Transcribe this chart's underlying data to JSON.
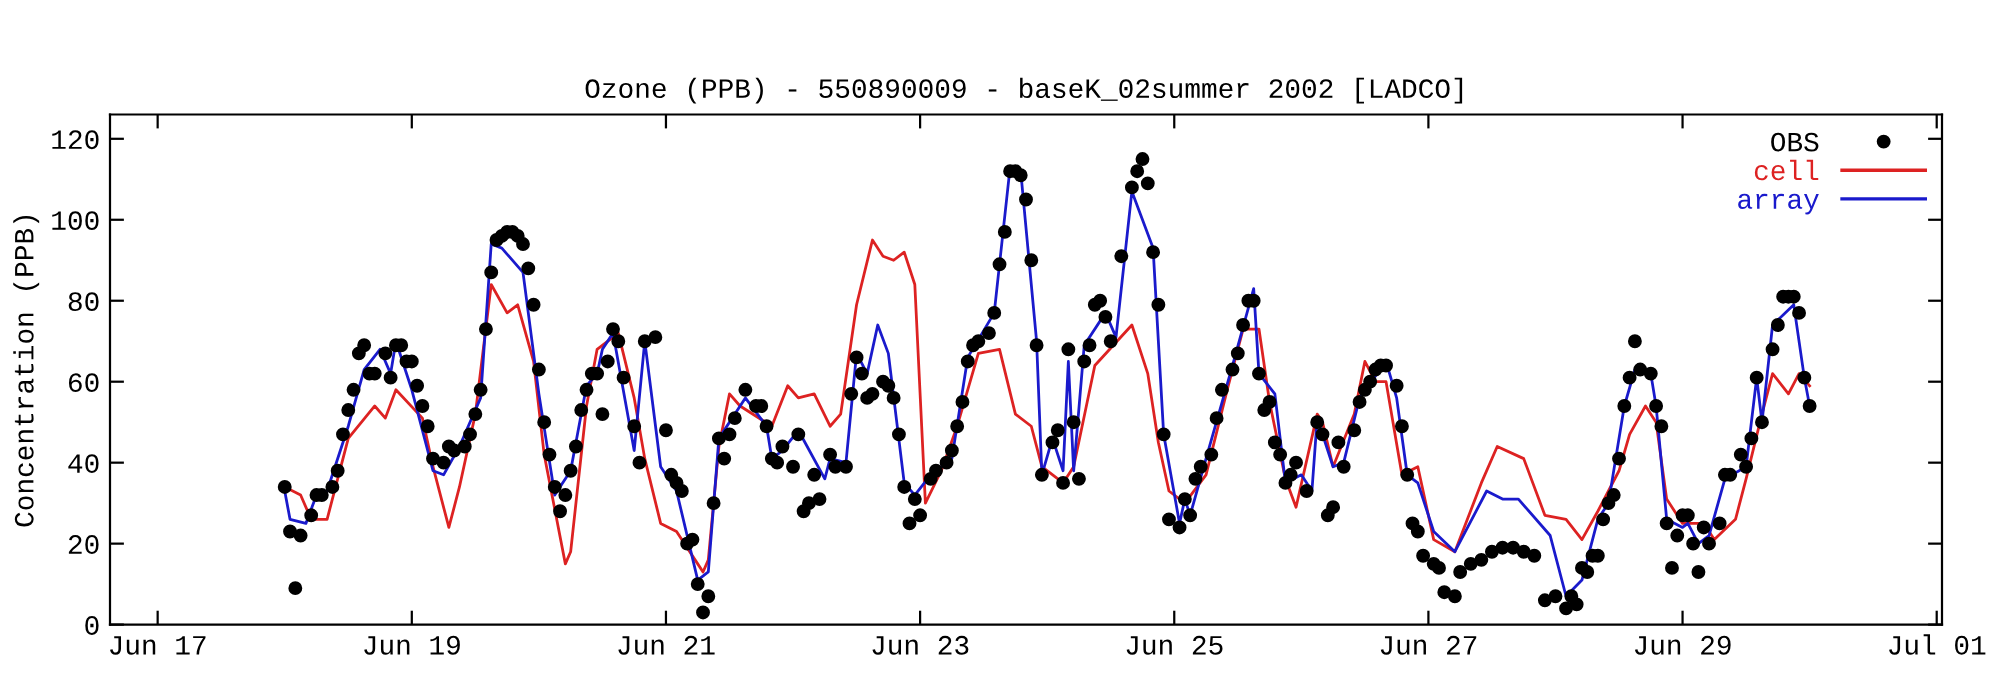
{
  "chart_data": {
    "type": "line",
    "title": "Ozone (PPB) - 550890009 - baseK_02summer 2002 [LADCO]",
    "ylabel": "Concentration (PPB)",
    "xlim": [
      "2002-06-16T15:00",
      "2002-07-01T01:00"
    ],
    "xticks": [
      {
        "value": "2002-06-17",
        "label": "Jun 17"
      },
      {
        "value": "2002-06-19",
        "label": "Jun 19"
      },
      {
        "value": "2002-06-21",
        "label": "Jun 21"
      },
      {
        "value": "2002-06-23",
        "label": "Jun 23"
      },
      {
        "value": "2002-06-25",
        "label": "Jun 25"
      },
      {
        "value": "2002-06-27",
        "label": "Jun 27"
      },
      {
        "value": "2002-06-29",
        "label": "Jun 29"
      },
      {
        "value": "2002-07-01",
        "label": "Jul 01"
      }
    ],
    "ylim": [
      0,
      126
    ],
    "yticks": [
      0,
      20,
      40,
      60,
      80,
      100,
      120
    ],
    "legend": "top right",
    "grid": false,
    "series": [
      {
        "name": "OBS",
        "type": "scatter",
        "marker": "circle",
        "color": "#000000",
        "x": [
          "2002-06-18T00:00",
          "2002-06-18T01:00",
          "2002-06-18T02:00",
          "2002-06-18T03:00",
          "2002-06-18T05:00",
          "2002-06-18T06:00",
          "2002-06-18T07:00",
          "2002-06-18T09:00",
          "2002-06-18T10:00",
          "2002-06-18T11:00",
          "2002-06-18T12:00",
          "2002-06-18T13:00",
          "2002-06-18T14:00",
          "2002-06-18T15:00",
          "2002-06-18T16:00",
          "2002-06-18T17:00",
          "2002-06-18T19:00",
          "2002-06-18T20:00",
          "2002-06-18T21:00",
          "2002-06-18T22:00",
          "2002-06-18T23:00",
          "2002-06-19T00:00",
          "2002-06-19T01:00",
          "2002-06-19T02:00",
          "2002-06-19T03:00",
          "2002-06-19T04:00",
          "2002-06-19T06:00",
          "2002-06-19T07:00",
          "2002-06-19T08:00",
          "2002-06-19T10:00",
          "2002-06-19T11:00",
          "2002-06-19T12:00",
          "2002-06-19T13:00",
          "2002-06-19T14:00",
          "2002-06-19T15:00",
          "2002-06-19T16:00",
          "2002-06-19T17:00",
          "2002-06-19T18:00",
          "2002-06-19T19:00",
          "2002-06-19T20:00",
          "2002-06-19T21:00",
          "2002-06-19T22:00",
          "2002-06-19T23:00",
          "2002-06-20T00:00",
          "2002-06-20T01:00",
          "2002-06-20T02:00",
          "2002-06-20T03:00",
          "2002-06-20T04:00",
          "2002-06-20T05:00",
          "2002-06-20T06:00",
          "2002-06-20T07:00",
          "2002-06-20T08:00",
          "2002-06-20T09:00",
          "2002-06-20T10:00",
          "2002-06-20T11:00",
          "2002-06-20T12:00",
          "2002-06-20T13:00",
          "2002-06-20T14:00",
          "2002-06-20T15:00",
          "2002-06-20T16:00",
          "2002-06-20T18:00",
          "2002-06-20T19:00",
          "2002-06-20T20:00",
          "2002-06-20T22:00",
          "2002-06-21T00:00",
          "2002-06-21T01:00",
          "2002-06-21T02:00",
          "2002-06-21T03:00",
          "2002-06-21T04:00",
          "2002-06-21T05:00",
          "2002-06-21T06:00",
          "2002-06-21T07:00",
          "2002-06-21T08:00",
          "2002-06-21T09:00",
          "2002-06-21T10:00",
          "2002-06-21T11:00",
          "2002-06-21T12:00",
          "2002-06-21T13:00",
          "2002-06-21T15:00",
          "2002-06-21T17:00",
          "2002-06-21T18:00",
          "2002-06-21T19:00",
          "2002-06-21T20:00",
          "2002-06-21T21:00",
          "2002-06-21T22:00",
          "2002-06-22T00:00",
          "2002-06-22T01:00",
          "2002-06-22T02:00",
          "2002-06-22T03:00",
          "2002-06-22T04:00",
          "2002-06-22T05:00",
          "2002-06-22T07:00",
          "2002-06-22T08:00",
          "2002-06-22T10:00",
          "2002-06-22T11:00",
          "2002-06-22T12:00",
          "2002-06-22T13:00",
          "2002-06-22T14:00",
          "2002-06-22T15:00",
          "2002-06-22T17:00",
          "2002-06-22T18:00",
          "2002-06-22T19:00",
          "2002-06-22T20:00",
          "2002-06-22T21:00",
          "2002-06-22T22:00",
          "2002-06-22T23:00",
          "2002-06-23T00:00",
          "2002-06-23T02:00",
          "2002-06-23T03:00",
          "2002-06-23T05:00",
          "2002-06-23T06:00",
          "2002-06-23T07:00",
          "2002-06-23T08:00",
          "2002-06-23T09:00",
          "2002-06-23T10:00",
          "2002-06-23T11:00",
          "2002-06-23T13:00",
          "2002-06-23T14:00",
          "2002-06-23T15:00",
          "2002-06-23T16:00",
          "2002-06-23T17:00",
          "2002-06-23T18:00",
          "2002-06-23T19:00",
          "2002-06-23T20:00",
          "2002-06-23T21:00",
          "2002-06-23T22:00",
          "2002-06-23T23:00",
          "2002-06-24T01:00",
          "2002-06-24T02:00",
          "2002-06-24T03:00",
          "2002-06-24T04:00",
          "2002-06-24T05:00",
          "2002-06-24T06:00",
          "2002-06-24T07:00",
          "2002-06-24T08:00",
          "2002-06-24T09:00",
          "2002-06-24T10:00",
          "2002-06-24T11:00",
          "2002-06-24T12:00",
          "2002-06-24T14:00",
          "2002-06-24T16:00",
          "2002-06-24T17:00",
          "2002-06-24T18:00",
          "2002-06-24T19:00",
          "2002-06-24T20:00",
          "2002-06-24T21:00",
          "2002-06-24T22:00",
          "2002-06-24T23:00",
          "2002-06-25T01:00",
          "2002-06-25T02:00",
          "2002-06-25T03:00",
          "2002-06-25T04:00",
          "2002-06-25T05:00",
          "2002-06-25T07:00",
          "2002-06-25T08:00",
          "2002-06-25T09:00",
          "2002-06-25T11:00",
          "2002-06-25T12:00",
          "2002-06-25T13:00",
          "2002-06-25T14:00",
          "2002-06-25T15:00",
          "2002-06-25T16:00",
          "2002-06-25T17:00",
          "2002-06-25T18:00",
          "2002-06-25T19:00",
          "2002-06-25T20:00",
          "2002-06-25T21:00",
          "2002-06-25T22:00",
          "2002-06-25T23:00",
          "2002-06-26T01:00",
          "2002-06-26T03:00",
          "2002-06-26T04:00",
          "2002-06-26T05:00",
          "2002-06-26T06:00",
          "2002-06-26T07:00",
          "2002-06-26T08:00",
          "2002-06-26T10:00",
          "2002-06-26T11:00",
          "2002-06-26T12:00",
          "2002-06-26T13:00",
          "2002-06-26T14:00",
          "2002-06-26T15:00",
          "2002-06-26T16:00",
          "2002-06-26T18:00",
          "2002-06-26T19:00",
          "2002-06-26T20:00",
          "2002-06-26T21:00",
          "2002-06-26T22:00",
          "2002-06-26T23:00",
          "2002-06-27T01:00",
          "2002-06-27T02:00",
          "2002-06-27T03:00",
          "2002-06-27T05:00",
          "2002-06-27T06:00",
          "2002-06-27T08:00",
          "2002-06-27T10:00",
          "2002-06-27T12:00",
          "2002-06-27T14:00",
          "2002-06-27T16:00",
          "2002-06-27T18:00",
          "2002-06-27T20:00",
          "2002-06-27T22:00",
          "2002-06-28T00:00",
          "2002-06-28T02:00",
          "2002-06-28T03:00",
          "2002-06-28T04:00",
          "2002-06-28T05:00",
          "2002-06-28T06:00",
          "2002-06-28T07:00",
          "2002-06-28T08:00",
          "2002-06-28T09:00",
          "2002-06-28T10:00",
          "2002-06-28T11:00",
          "2002-06-28T12:00",
          "2002-06-28T13:00",
          "2002-06-28T14:00",
          "2002-06-28T15:00",
          "2002-06-28T16:00",
          "2002-06-28T18:00",
          "2002-06-28T19:00",
          "2002-06-28T20:00",
          "2002-06-28T21:00",
          "2002-06-28T22:00",
          "2002-06-28T23:00",
          "2002-06-29T00:00",
          "2002-06-29T01:00",
          "2002-06-29T02:00",
          "2002-06-29T03:00",
          "2002-06-29T04:00",
          "2002-06-29T05:00",
          "2002-06-29T07:00",
          "2002-06-29T08:00",
          "2002-06-29T09:00",
          "2002-06-29T11:00",
          "2002-06-29T12:00",
          "2002-06-29T13:00",
          "2002-06-29T14:00",
          "2002-06-29T15:00",
          "2002-06-29T17:00",
          "2002-06-29T18:00",
          "2002-06-29T19:00",
          "2002-06-29T20:00",
          "2002-06-29T21:00",
          "2002-06-29T22:00",
          "2002-06-29T23:00",
          "2002-06-30T00:00"
        ],
        "values": [
          34,
          23,
          9,
          22,
          27,
          32,
          32,
          34,
          38,
          47,
          53,
          58,
          67,
          69,
          62,
          62,
          67,
          61,
          69,
          69,
          65,
          65,
          59,
          54,
          49,
          41,
          40,
          44,
          43,
          44,
          47,
          52,
          58,
          73,
          87,
          95,
          96,
          97,
          97,
          96,
          94,
          88,
          79,
          63,
          50,
          42,
          34,
          28,
          32,
          38,
          44,
          53,
          58,
          62,
          62,
          52,
          65,
          73,
          70,
          61,
          49,
          40,
          70,
          71,
          48,
          37,
          35,
          33,
          20,
          21,
          10,
          3,
          7,
          30,
          46,
          41,
          47,
          51,
          58,
          54,
          54,
          49,
          41,
          40,
          44,
          39,
          47,
          28,
          30,
          37,
          31,
          42,
          39,
          39,
          57,
          66,
          62,
          56,
          57,
          60,
          59,
          56,
          47,
          34,
          25,
          31,
          27,
          36,
          38,
          40,
          43,
          49,
          55,
          65,
          69,
          70,
          72,
          77,
          89,
          97,
          112,
          112,
          111,
          105,
          90,
          69,
          37,
          45,
          48,
          35,
          68,
          50,
          36,
          65,
          69,
          79,
          80,
          76,
          70,
          91,
          108,
          112,
          115,
          109,
          92,
          79,
          47,
          26,
          24,
          31,
          27,
          36,
          39,
          42,
          51,
          58,
          63,
          67,
          74,
          80,
          80,
          62,
          53,
          55,
          45,
          42,
          35,
          37,
          40,
          33,
          50,
          47,
          27,
          29,
          45,
          39,
          48,
          55,
          58,
          60,
          63,
          64,
          64,
          59,
          49,
          37,
          25,
          23,
          17,
          15,
          14,
          8,
          7,
          13,
          15,
          16,
          18,
          19,
          19,
          18,
          17,
          6,
          7,
          4,
          7,
          5,
          14,
          13,
          17,
          17,
          26,
          30,
          32,
          41,
          54,
          61,
          70,
          63,
          62,
          54,
          49,
          25,
          14,
          22,
          27,
          27,
          20,
          13,
          24,
          20,
          25,
          37,
          37,
          42,
          39,
          46,
          61,
          50,
          68,
          74,
          81,
          81,
          81,
          77,
          61,
          54
        ]
      },
      {
        "name": "cell",
        "color": "#dd2222",
        "x": [
          "2002-06-18T00:00",
          "2002-06-18T03:00",
          "2002-06-18T05:00",
          "2002-06-18T08:00",
          "2002-06-18T12:00",
          "2002-06-18T17:00",
          "2002-06-18T19:00",
          "2002-06-18T21:00",
          "2002-06-19T02:00",
          "2002-06-19T04:00",
          "2002-06-19T07:00",
          "2002-06-19T09:00",
          "2002-06-19T12:00",
          "2002-06-19T15:00",
          "2002-06-19T18:00",
          "2002-06-19T20:00",
          "2002-06-19T23:00",
          "2002-06-20T01:00",
          "2002-06-20T05:00",
          "2002-06-20T06:00",
          "2002-06-20T09:00",
          "2002-06-20T11:00",
          "2002-06-20T15:00",
          "2002-06-20T18:00",
          "2002-06-20T20:00",
          "2002-06-20T23:00",
          "2002-06-21T02:00",
          "2002-06-21T06:00",
          "2002-06-21T07:00",
          "2002-06-21T08:00",
          "2002-06-21T10:00",
          "2002-06-21T12:00",
          "2002-06-21T14:00",
          "2002-06-21T20:00",
          "2002-06-21T23:00",
          "2002-06-22T01:00",
          "2002-06-22T04:00",
          "2002-06-22T07:00",
          "2002-06-22T09:00",
          "2002-06-22T12:00",
          "2002-06-22T15:00",
          "2002-06-22T17:00",
          "2002-06-22T19:00",
          "2002-06-22T21:00",
          "2002-06-22T23:00",
          "2002-06-23T01:00",
          "2002-06-23T04:00",
          "2002-06-23T07:00",
          "2002-06-23T11:00",
          "2002-06-23T15:00",
          "2002-06-23T18:00",
          "2002-06-23T21:00",
          "2002-06-23T23:00",
          "2002-06-24T03:00",
          "2002-06-24T05:00",
          "2002-06-24T09:00",
          "2002-06-24T16:00",
          "2002-06-24T19:00",
          "2002-06-24T21:00",
          "2002-06-24T23:00",
          "2002-06-25T02:00",
          "2002-06-25T06:00",
          "2002-06-25T10:00",
          "2002-06-25T13:00",
          "2002-06-25T16:00",
          "2002-06-25T18:00",
          "2002-06-25T21:00",
          "2002-06-25T23:00",
          "2002-06-26T03:00",
          "2002-06-26T04:00",
          "2002-06-26T06:00",
          "2002-06-26T10:00",
          "2002-06-26T12:00",
          "2002-06-26T14:00",
          "2002-06-26T16:00",
          "2002-06-26T19:00",
          "2002-06-26T22:00",
          "2002-06-27T01:00",
          "2002-06-27T05:00",
          "2002-06-27T10:00",
          "2002-06-27T13:00",
          "2002-06-27T18:00",
          "2002-06-27T22:00",
          "2002-06-28T02:00",
          "2002-06-28T05:00",
          "2002-06-28T08:00",
          "2002-06-28T12:00",
          "2002-06-28T14:00",
          "2002-06-28T17:00",
          "2002-06-28T19:00",
          "2002-06-28T21:00",
          "2002-06-29T00:00",
          "2002-06-29T04:00",
          "2002-06-29T06:00",
          "2002-06-29T10:00",
          "2002-06-29T12:00",
          "2002-06-29T15:00",
          "2002-06-29T17:00",
          "2002-06-29T20:00",
          "2002-06-29T22:00",
          "2002-06-30T00:00"
        ],
        "values": [
          34,
          32,
          26,
          26,
          46,
          54,
          51,
          58,
          51,
          39,
          24,
          34,
          52,
          84,
          77,
          79,
          65,
          42,
          15,
          18,
          54,
          68,
          72,
          56,
          41,
          25,
          23,
          15,
          13,
          16,
          44,
          57,
          54,
          49,
          59,
          56,
          57,
          49,
          52,
          79,
          95,
          91,
          90,
          92,
          84,
          30,
          38,
          49,
          67,
          68,
          52,
          49,
          39,
          35,
          39,
          64,
          74,
          62,
          45,
          33,
          30,
          37,
          58,
          73,
          73,
          55,
          36,
          29,
          52,
          50,
          39,
          52,
          65,
          60,
          60,
          37,
          39,
          21,
          18,
          35,
          44,
          41,
          27,
          26,
          21,
          28,
          38,
          47,
          54,
          50,
          31,
          25,
          25,
          21,
          26,
          36,
          52,
          62,
          57,
          62,
          59
        ]
      },
      {
        "name": "array",
        "color": "#1a1acc",
        "x": [
          "2002-06-18T00:00",
          "2002-06-18T01:00",
          "2002-06-18T04:00",
          "2002-06-18T06:00",
          "2002-06-18T08:00",
          "2002-06-18T12:00",
          "2002-06-18T15:00",
          "2002-06-18T18:00",
          "2002-06-18T20:00",
          "2002-06-18T21:00",
          "2002-06-19T00:00",
          "2002-06-19T04:00",
          "2002-06-19T06:00",
          "2002-06-19T09:00",
          "2002-06-19T13:00",
          "2002-06-19T15:00",
          "2002-06-19T17:00",
          "2002-06-19T21:00",
          "2002-06-20T00:00",
          "2002-06-20T03:00",
          "2002-06-20T06:00",
          "2002-06-20T09:00",
          "2002-06-20T11:00",
          "2002-06-20T12:00",
          "2002-06-20T14:00",
          "2002-06-20T18:00",
          "2002-06-20T20:00",
          "2002-06-20T23:00",
          "2002-06-21T02:00",
          "2002-06-21T06:00",
          "2002-06-21T08:00",
          "2002-06-21T10:00",
          "2002-06-21T15:00",
          "2002-06-21T19:00",
          "2002-06-21T20:00",
          "2002-06-21T22:00",
          "2002-06-22T01:00",
          "2002-06-22T06:00",
          "2002-06-22T07:00",
          "2002-06-22T10:00",
          "2002-06-22T12:00",
          "2002-06-22T14:00",
          "2002-06-22T16:00",
          "2002-06-22T18:00",
          "2002-06-22T21:00",
          "2002-06-22T23:00",
          "2002-06-23T02:00",
          "2002-06-23T06:00",
          "2002-06-23T09:00",
          "2002-06-23T14:00",
          "2002-06-23T17:00",
          "2002-06-23T19:00",
          "2002-06-23T22:00",
          "2002-06-23T23:00",
          "2002-06-24T01:00",
          "2002-06-24T03:00",
          "2002-06-24T04:00",
          "2002-06-24T05:00",
          "2002-06-24T07:00",
          "2002-06-24T11:00",
          "2002-06-24T13:00",
          "2002-06-24T16:00",
          "2002-06-24T20:00",
          "2002-06-24T22:00",
          "2002-06-25T01:00",
          "2002-06-25T02:00",
          "2002-06-25T03:00",
          "2002-06-25T06:00",
          "2002-06-25T11:00",
          "2002-06-25T15:00",
          "2002-06-25T16:00",
          "2002-06-25T19:00",
          "2002-06-25T21:00",
          "2002-06-26T00:00",
          "2002-06-26T02:00",
          "2002-06-26T03:00",
          "2002-06-26T06:00",
          "2002-06-26T08:00",
          "2002-06-26T11:00",
          "2002-06-26T16:00",
          "2002-06-26T18:00",
          "2002-06-26T20:00",
          "2002-06-26T22:00",
          "2002-06-27T01:00",
          "2002-06-27T05:00",
          "2002-06-27T11:00",
          "2002-06-27T14:00",
          "2002-06-27T17:00",
          "2002-06-27T23:00",
          "2002-06-28T02:00",
          "2002-06-28T05:00",
          "2002-06-28T08:00",
          "2002-06-28T10:00",
          "2002-06-28T13:00",
          "2002-06-28T15:00",
          "2002-06-28T18:00",
          "2002-06-28T19:00",
          "2002-06-28T21:00",
          "2002-06-29T00:00",
          "2002-06-29T01:00",
          "2002-06-29T03:00",
          "2002-06-29T05:00",
          "2002-06-29T08:00",
          "2002-06-29T12:00",
          "2002-06-29T14:00",
          "2002-06-29T15:00",
          "2002-06-29T17:00",
          "2002-06-29T21:00",
          "2002-06-29T23:00",
          "2002-06-30T00:00"
        ],
        "values": [
          33,
          26,
          25,
          32,
          33,
          49,
          63,
          68,
          62,
          70,
          58,
          38,
          37,
          44,
          56,
          94,
          93,
          87,
          57,
          32,
          38,
          59,
          62,
          68,
          72,
          43,
          70,
          39,
          33,
          11,
          13,
          46,
          56,
          49,
          41,
          43,
          48,
          36,
          41,
          40,
          67,
          62,
          74,
          67,
          35,
          32,
          37,
          41,
          66,
          77,
          113,
          112,
          70,
          37,
          46,
          38,
          65,
          38,
          69,
          77,
          71,
          107,
          93,
          47,
          25,
          31,
          27,
          41,
          64,
          83,
          62,
          57,
          35,
          37,
          33,
          51,
          39,
          40,
          56,
          65,
          56,
          37,
          35,
          23,
          18,
          33,
          31,
          31,
          22,
          7,
          11,
          26,
          30,
          54,
          63,
          62,
          54,
          26,
          24,
          25,
          20,
          22,
          36,
          39,
          61,
          50,
          74,
          79,
          61,
          54
        ]
      }
    ]
  }
}
